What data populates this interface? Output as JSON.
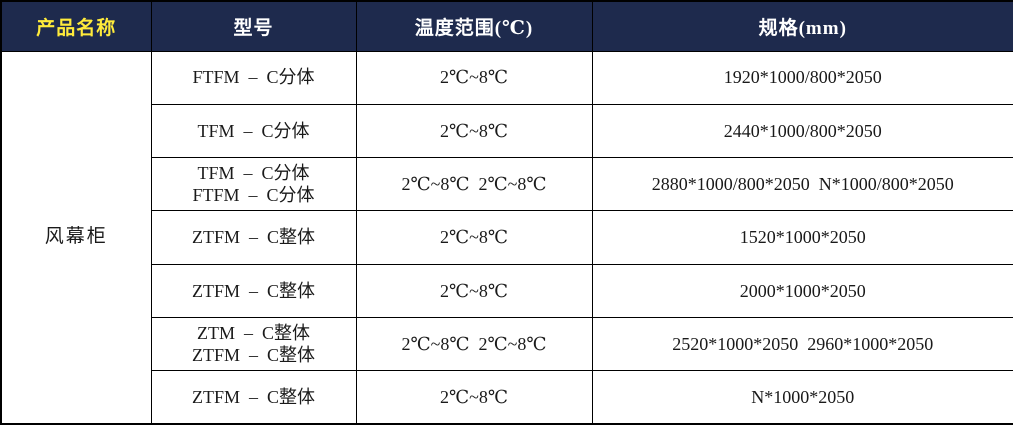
{
  "table": {
    "headers": [
      "产品名称",
      "型号",
      "温度范围(℃)",
      "规格(mm)"
    ],
    "product_name": "风幕柜",
    "rows": [
      {
        "model": "FTFM  –  C分体",
        "temp": "2℃~8℃",
        "spec": "1920*1000/800*2050"
      },
      {
        "model": "TFM  –  C分体",
        "temp": "2℃~8℃",
        "spec": "2440*1000/800*2050"
      },
      {
        "model": "TFM  –  C分体\nFTFM  –  C分体",
        "temp": "2℃~8℃  2℃~8℃",
        "spec": "2880*1000/800*2050  N*1000/800*2050"
      },
      {
        "model": "ZTFM  –  C整体",
        "temp": "2℃~8℃",
        "spec": "1520*1000*2050"
      },
      {
        "model": "ZTFM  –  C整体",
        "temp": "2℃~8℃",
        "spec": "2000*1000*2050"
      },
      {
        "model": "ZTM  –  C整体\nZTFM  –  C整体",
        "temp": "2℃~8℃  2℃~8℃",
        "spec": "2520*1000*2050  2960*1000*2050"
      },
      {
        "model": "ZTFM  –  C整体",
        "temp": "2℃~8℃",
        "spec": "N*1000*2050"
      }
    ],
    "colors": {
      "header_bg": "#1E2A4D",
      "header_text": "#FFFFFF",
      "first_header_text": "#FFEB3B",
      "body_bg": "#FFFFFF",
      "border": "#000000"
    }
  }
}
